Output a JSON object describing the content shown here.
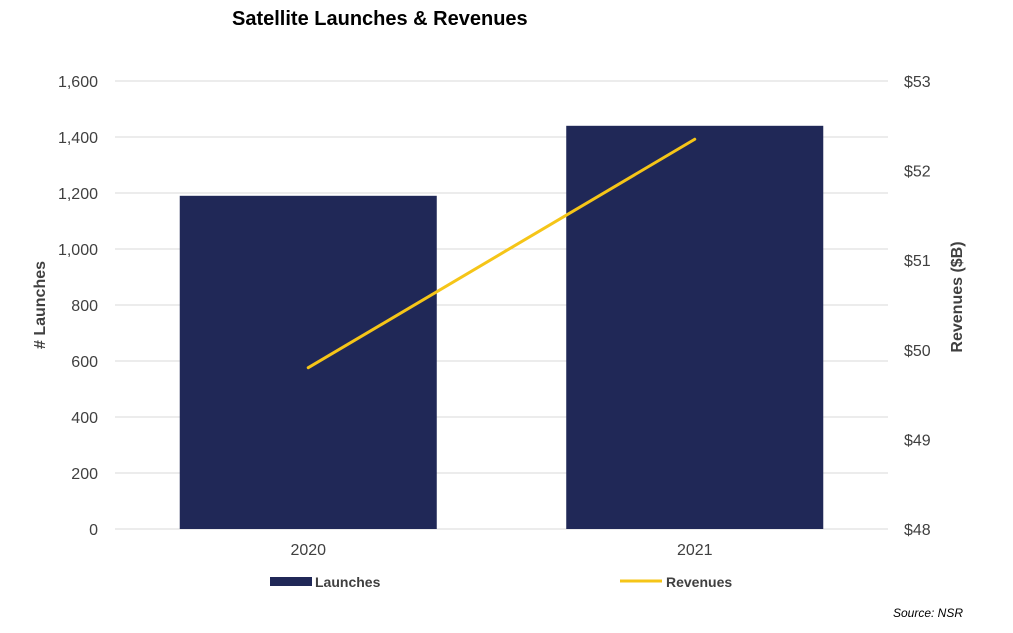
{
  "chart_data": {
    "type": "bar",
    "title": "Satellite Launches & Revenues",
    "categories": [
      "2020",
      "2021"
    ],
    "series": [
      {
        "name": "Launches",
        "type": "bar",
        "axis": "left",
        "color": "#202857",
        "values": [
          1190,
          1440
        ]
      },
      {
        "name": "Revenues",
        "type": "line",
        "axis": "right",
        "color": "#F5C518",
        "values": [
          49.8,
          52.35
        ]
      }
    ],
    "ylabel": "# Launches",
    "y2label": "Revenues ($B)",
    "ylim": [
      0,
      1600
    ],
    "y2lim": [
      48,
      53
    ],
    "yticks": [
      "0",
      "200",
      "400",
      "600",
      "800",
      "1,000",
      "1,200",
      "1,400",
      "1,600"
    ],
    "y2ticks": [
      "$48",
      "$49",
      "$50",
      "$51",
      "$52",
      "$53"
    ],
    "grid": true,
    "legend_position": "bottom"
  },
  "source": "Source: NSR"
}
